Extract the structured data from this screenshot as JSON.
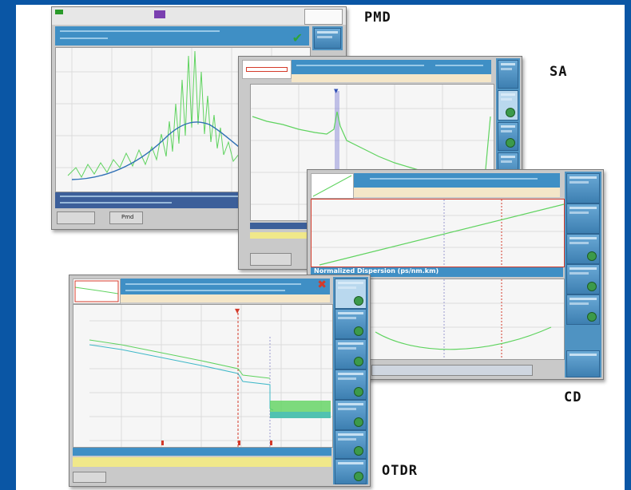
{
  "labels": {
    "pmd": "PMD",
    "sa": "SA",
    "cd": "CD",
    "otdr": "OTDR"
  },
  "pmd_screen": {
    "bottom_tab": "Pmd"
  },
  "cd_screen": {
    "plot_title": "Normalized Dispersion (ps/nm.km)"
  },
  "colors": {
    "frame": "#0a56a5",
    "header": "#3f8fc5",
    "trace_green": "#5fd35f",
    "trace_blue": "#2f6fb5",
    "marker_red": "#d43a2a"
  }
}
